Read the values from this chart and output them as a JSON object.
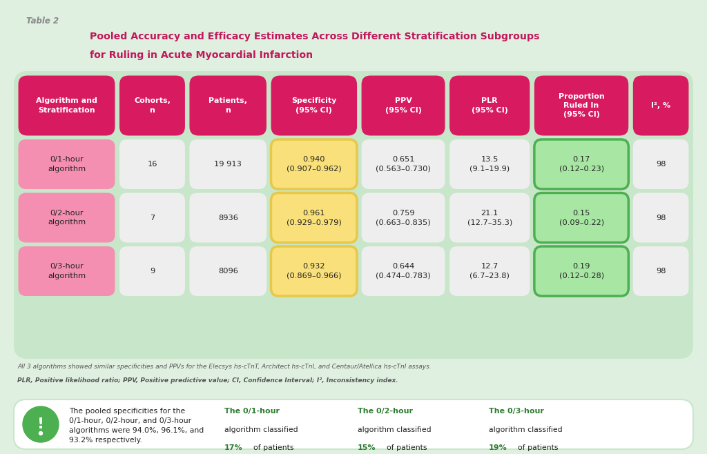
{
  "title_label": "Table 2",
  "title_main_line1": "Pooled Accuracy and Efficacy Estimates Across Different Stratification Subgroups",
  "title_main_line2": "for Ruling in Acute Myocardial Infarction",
  "bg_color": "#dff0e0",
  "header_bg": "#d81b60",
  "header_text_color": "#ffffff",
  "headers": [
    "Algorithm and\nStratification",
    "Cohorts,\nn",
    "Patients,\nn",
    "Specificity\n(95% CI)",
    "PPV\n(95% CI)",
    "PLR\n(95% CI)",
    "Proportion\nRuled In\n(95% CI)",
    "I², %"
  ],
  "rows": [
    {
      "algo": "0/1-hour\nalgorithm",
      "cohorts": "16",
      "patients": "19 913",
      "specificity": "0.940\n(0.907–0.962)",
      "ppv": "0.651\n(0.563–0.730)",
      "plr": "13.5\n(9.1–19.9)",
      "proportion": "0.17\n(0.12–0.23)",
      "i2": "98"
    },
    {
      "algo": "0/2-hour\nalgorithm",
      "cohorts": "7",
      "patients": "8936",
      "specificity": "0.961\n(0.929–0.979)",
      "ppv": "0.759\n(0.663–0.835)",
      "plr": "21.1\n(12.7–35.3)",
      "proportion": "0.15\n(0.09–0.22)",
      "i2": "98"
    },
    {
      "algo": "0/3-hour\nalgorithm",
      "cohorts": "9",
      "patients": "8096",
      "specificity": "0.932\n(0.869–0.966)",
      "ppv": "0.644\n(0.474–0.783)",
      "plr": "12.7\n(6.7–23.8)",
      "proportion": "0.19\n(0.12–0.28)",
      "i2": "98"
    }
  ],
  "algo_cell_color": "#f48fb1",
  "specificity_cell_color": "#f9e07a",
  "specificity_border_color": "#e6c84a",
  "proportion_cell_color": "#a8e6a3",
  "proportion_border_color": "#4caf50",
  "default_cell_color": "#eeeeee",
  "table_bg_color": "#c8e6c9",
  "footnote_line1": "All 3 algorithms showed similar specificities and PPVs for the Elecsys hs-cTnT, Architect hs-cTnI, and Centaur/Atellica hs-cTnI assays.",
  "footnote_line2": "PLR, Positive likelihood ratio; PPV, Positive predictive value; CI, Confidence Interval; I², Inconsistency index.",
  "callout_bg": "#ffffff",
  "callout_border_color": "#b2dfdb",
  "callout_icon_bg": "#4caf50",
  "callout_text_main": "The pooled specificities for the\n0/1-hour, 0/2-hour, and 0/3-hour\nalgorithms were 94.0%, 96.1%, and\n93.2% respectively.",
  "callout_headers": [
    "The 0/1-hour",
    "The 0/2-hour",
    "The 0/3-hour"
  ],
  "callout_pcts": [
    "17%",
    "15%",
    "19%"
  ],
  "green_text_color": "#2e7d32",
  "title_color": "#c2185b",
  "title_label_color": "#888888",
  "footnote_color": "#555555",
  "cell_text_color": "#222222",
  "dpi": 100,
  "fig_w": 10.24,
  "fig_h": 6.58
}
